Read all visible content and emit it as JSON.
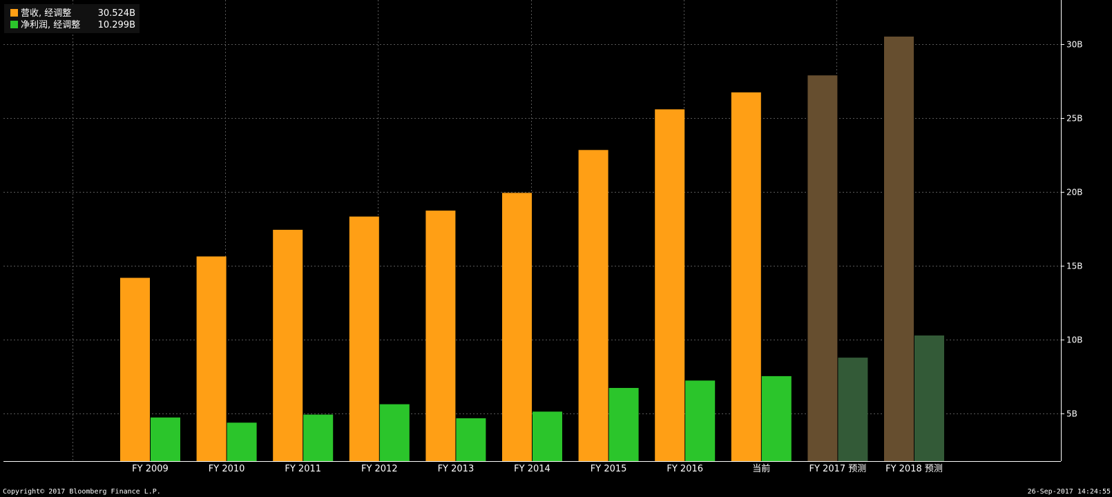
{
  "chart_data": {
    "type": "bar",
    "categories": [
      "FY 2009",
      "FY 2010",
      "FY 2011",
      "FY 2012",
      "FY 2013",
      "FY 2014",
      "FY 2015",
      "FY 2016",
      "当前",
      "FY 2017 预测",
      "FY 2018 预测"
    ],
    "forecast_categories": [
      "FY 2017 预测",
      "FY 2018 预测"
    ],
    "series": [
      {
        "name": "营收, 经调整",
        "legend_value": "30.524B",
        "color": "#ff9f15",
        "forecast_color": "#664e2f",
        "values": [
          14.2,
          15.65,
          17.45,
          18.35,
          18.75,
          19.95,
          22.85,
          25.6,
          26.75,
          27.9,
          30.524
        ]
      },
      {
        "name": "净利润, 经调整",
        "legend_value": "10.299B",
        "color": "#2bc52b",
        "forecast_color": "#335a37",
        "values": [
          4.75,
          4.4,
          4.95,
          5.65,
          4.7,
          5.15,
          6.75,
          7.25,
          7.55,
          8.8,
          10.299
        ]
      }
    ],
    "yticks": [
      "5B",
      "10B",
      "15B",
      "20B",
      "25B",
      "30B"
    ],
    "ytick_values": [
      5,
      10,
      15,
      20,
      25,
      30
    ],
    "ylim": [
      1.8,
      33.0
    ],
    "grid": true,
    "legend_position": "top-left",
    "axis_position": "right"
  },
  "footer": {
    "copyright": "Copyright© 2017 Bloomberg Finance L.P.",
    "timestamp": "26-Sep-2017 14:24:55"
  }
}
